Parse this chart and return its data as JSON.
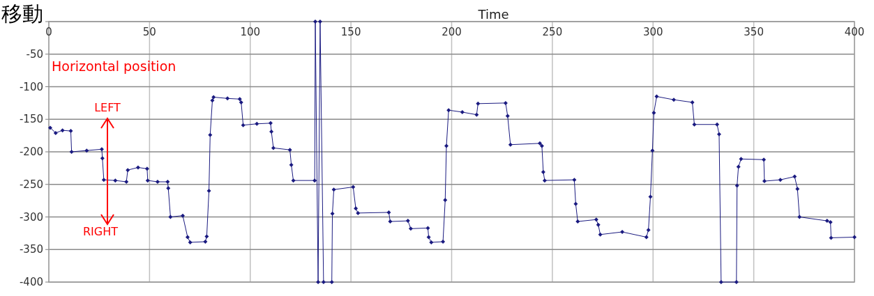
{
  "chart_data": {
    "type": "line",
    "title": "移動",
    "xlabel": "Time",
    "x": [
      0.7,
      3.4,
      6.8,
      10.9,
      11.3,
      18.8,
      26.3,
      26.6,
      27.3,
      33,
      38.5,
      39.2,
      44.3,
      48.8,
      49.1,
      54,
      59.0,
      59.3,
      60.4,
      66.5,
      68.9,
      70.2,
      77.7,
      78.4,
      79.5,
      80.1,
      81.2,
      81.8,
      88.7,
      94.8,
      95.5,
      96.5,
      103.3,
      110.1,
      110.5,
      111.5,
      119.7,
      120.4,
      121.4,
      132.0,
      132.3,
      133.7,
      134.7,
      136.4,
      140.5,
      140.8,
      141.5,
      151.1,
      152.4,
      153.5,
      168.8,
      169.5,
      178.3,
      179.7,
      188.2,
      188.6,
      189.9,
      195.7,
      196.8,
      197.4,
      198.5,
      205.3,
      212.4,
      213.1,
      226.8,
      227.8,
      229.2,
      243.8,
      244.8,
      245.5,
      246.2,
      260.9,
      261.6,
      262.6,
      271.8,
      272.8,
      273.8,
      284.7,
      296.7,
      297.7,
      298.7,
      299.7,
      300.4,
      301.8,
      310.3,
      319.5,
      320.5,
      331.8,
      332.8,
      333.8,
      341.4,
      341.7,
      342.4,
      343.7,
      355.0,
      355.3,
      363.2,
      370.3,
      371.7,
      372.7,
      386.4,
      388.1,
      388.4,
      400
    ],
    "series": [
      {
        "color": "#1a1a80",
        "values": [
          -163,
          -171,
          -167,
          -168,
          -200,
          -198,
          -196,
          -210,
          -243,
          -244,
          -246,
          -228,
          -224,
          -226,
          -244,
          -246,
          -246,
          -256,
          -300,
          -298,
          -331,
          -339,
          -338,
          -330,
          -260,
          -174,
          -121,
          -116,
          -118,
          -119,
          -124,
          -159,
          -157,
          -156,
          -169,
          -194,
          -197,
          -220,
          -244,
          -244,
          0,
          -400,
          0,
          -400,
          -400,
          -295,
          -258,
          -254,
          -287,
          -294,
          -293,
          -307,
          -306,
          -318,
          -317,
          -331,
          -339,
          -338,
          -274,
          -191,
          -136,
          -139,
          -143,
          -126,
          -125,
          -145,
          -189,
          -187,
          -191,
          -231,
          -244,
          -243,
          -280,
          -307,
          -304,
          -312,
          -327,
          -323,
          -331,
          -320,
          -269,
          -198,
          -140,
          -115,
          -120,
          -124,
          -158,
          -158,
          -173,
          -400,
          -400,
          -252,
          -223,
          -211,
          -212,
          -245,
          -243,
          -238,
          -257,
          -300,
          -306,
          -308,
          -332,
          -331
        ]
      }
    ],
    "xlim": [
      0,
      400
    ],
    "xticks": [
      0,
      50,
      100,
      150,
      200,
      250,
      300,
      350,
      400
    ],
    "ylim": [
      -400,
      0
    ],
    "yticks": [
      {
        "value": 0,
        "label": null
      },
      -50,
      -100,
      -150,
      -200,
      -250,
      -300,
      -350,
      -400
    ],
    "grid": true,
    "marker": "diamond",
    "line_style": "solid",
    "annotations": [
      "Horizontal position",
      "LEFT",
      "RIGHT"
    ]
  }
}
